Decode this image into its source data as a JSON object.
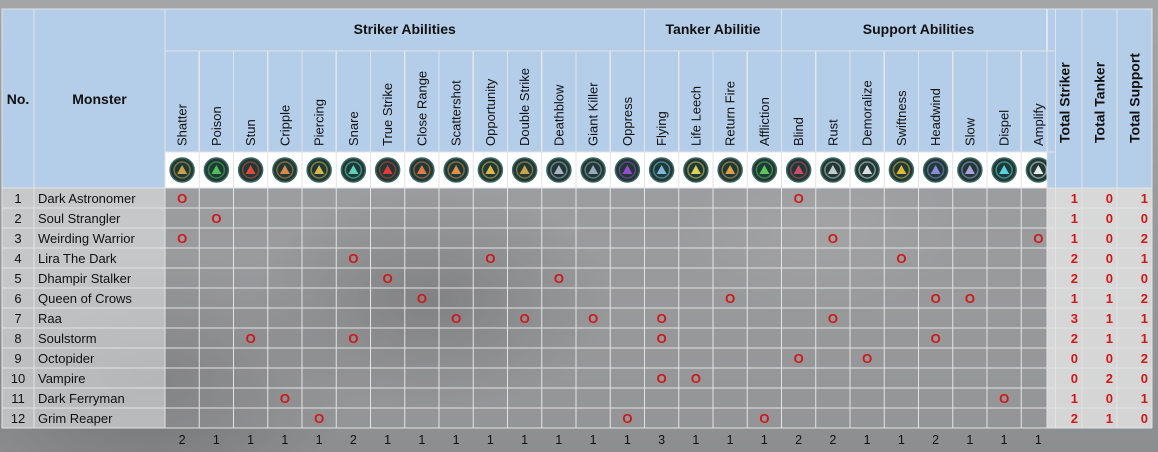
{
  "headers": {
    "no": "No.",
    "monster": "Monster",
    "sections": [
      {
        "key": "striker",
        "label": "Striker Abilities"
      },
      {
        "key": "tanker",
        "label": "Tanker Abilitie"
      },
      {
        "key": "support",
        "label": "Support Abilities"
      }
    ],
    "totals": [
      "Total Striker",
      "Total Tanker",
      "Total Support"
    ]
  },
  "abilities": [
    {
      "name": "Shatter",
      "group": "striker",
      "icon": "shatter-icon",
      "color": "#c9a24a"
    },
    {
      "name": "Poison",
      "group": "striker",
      "icon": "poison-icon",
      "color": "#4fbf5a"
    },
    {
      "name": "Stun",
      "group": "striker",
      "icon": "stun-icon",
      "color": "#e04a3a"
    },
    {
      "name": "Cripple",
      "group": "striker",
      "icon": "cripple-icon",
      "color": "#d98a4a"
    },
    {
      "name": "Piercing",
      "group": "striker",
      "icon": "piercing-icon",
      "color": "#d9b54a"
    },
    {
      "name": "Snare",
      "group": "striker",
      "icon": "snare-icon",
      "color": "#5ad1b8"
    },
    {
      "name": "True Strike",
      "group": "striker",
      "icon": "true-strike-icon",
      "color": "#e03a3a"
    },
    {
      "name": "Close Range",
      "group": "striker",
      "icon": "close-range-icon",
      "color": "#e07a4a"
    },
    {
      "name": "Scattershot",
      "group": "striker",
      "icon": "scattershot-icon",
      "color": "#e0904a"
    },
    {
      "name": "Opportunity",
      "group": "striker",
      "icon": "opportunity-icon",
      "color": "#e0b84a"
    },
    {
      "name": "Double Strike",
      "group": "striker",
      "icon": "double-strike-icon",
      "color": "#c9a24a"
    },
    {
      "name": "Deathblow",
      "group": "striker",
      "icon": "deathblow-icon",
      "color": "#b0b0c8"
    },
    {
      "name": "Giant Killer",
      "group": "striker",
      "icon": "giant-killer-icon",
      "color": "#9aa8b8"
    },
    {
      "name": "Oppress",
      "group": "striker",
      "icon": "oppress-icon",
      "color": "#9a4ad1"
    },
    {
      "name": "Flying",
      "group": "tanker",
      "icon": "flying-icon",
      "color": "#7ab8e0"
    },
    {
      "name": "Life Leech",
      "group": "tanker",
      "icon": "life-leech-icon",
      "color": "#e0d05a"
    },
    {
      "name": "Return Fire",
      "group": "tanker",
      "icon": "return-fire-icon",
      "color": "#e0a04a"
    },
    {
      "name": "Affliction",
      "group": "tanker",
      "icon": "affliction-icon",
      "color": "#5ac85a"
    },
    {
      "name": "Blind",
      "group": "support",
      "icon": "blind-icon",
      "color": "#d14a6a"
    },
    {
      "name": "Rust",
      "group": "support",
      "icon": "rust-icon",
      "color": "#c8c8c8"
    },
    {
      "name": "Demoralize",
      "group": "support",
      "icon": "demoralize-icon",
      "color": "#dcdcdc"
    },
    {
      "name": "Swiftness",
      "group": "support",
      "icon": "swiftness-icon",
      "color": "#e0b83a"
    },
    {
      "name": "Headwind",
      "group": "support",
      "icon": "headwind-icon",
      "color": "#8a8ae0"
    },
    {
      "name": "Slow",
      "group": "support",
      "icon": "slow-icon",
      "color": "#b0a0e0"
    },
    {
      "name": "Dispel",
      "group": "support",
      "icon": "dispel-icon",
      "color": "#5ad1e0"
    },
    {
      "name": "Amplify",
      "group": "support",
      "icon": "amplify-icon",
      "color": "#e8e8e8"
    }
  ],
  "mark": "O",
  "rows": [
    {
      "no": "1",
      "name": "Dark Astronomer",
      "marks": [
        0,
        18
      ],
      "totals": [
        "1",
        "0",
        "1"
      ]
    },
    {
      "no": "2",
      "name": "Soul Strangler",
      "marks": [
        1
      ],
      "totals": [
        "1",
        "0",
        "0"
      ]
    },
    {
      "no": "3",
      "name": "Weirding Warrior",
      "marks": [
        0,
        19,
        25
      ],
      "totals": [
        "1",
        "0",
        "2"
      ]
    },
    {
      "no": "4",
      "name": "Lira The Dark",
      "marks": [
        5,
        9,
        21
      ],
      "totals": [
        "2",
        "0",
        "1"
      ]
    },
    {
      "no": "5",
      "name": "Dhampir Stalker",
      "marks": [
        6,
        11
      ],
      "totals": [
        "2",
        "0",
        "0"
      ]
    },
    {
      "no": "6",
      "name": "Queen of Crows",
      "marks": [
        7,
        16,
        22,
        23
      ],
      "totals": [
        "1",
        "1",
        "2"
      ]
    },
    {
      "no": "7",
      "name": "Raa",
      "marks": [
        8,
        10,
        12,
        14,
        19
      ],
      "totals": [
        "3",
        "1",
        "1"
      ]
    },
    {
      "no": "8",
      "name": "Soulstorm",
      "marks": [
        2,
        5,
        14,
        22
      ],
      "totals": [
        "2",
        "1",
        "1"
      ]
    },
    {
      "no": "9",
      "name": "Octopider",
      "marks": [
        18,
        20
      ],
      "totals": [
        "0",
        "0",
        "2"
      ]
    },
    {
      "no": "10",
      "name": "Vampire",
      "marks": [
        14,
        15
      ],
      "totals": [
        "0",
        "2",
        "0"
      ]
    },
    {
      "no": "11",
      "name": "Dark Ferryman",
      "marks": [
        3,
        24
      ],
      "totals": [
        "1",
        "0",
        "1"
      ]
    },
    {
      "no": "12",
      "name": "Grim Reaper",
      "marks": [
        4,
        13,
        17
      ],
      "totals": [
        "2",
        "1",
        "0"
      ]
    }
  ],
  "column_counts": [
    "2",
    "1",
    "1",
    "1",
    "1",
    "2",
    "1",
    "1",
    "1",
    "1",
    "1",
    "1",
    "1",
    "1",
    "3",
    "1",
    "1",
    "1",
    "2",
    "2",
    "1",
    "1",
    "2",
    "1",
    "1",
    "1"
  ]
}
